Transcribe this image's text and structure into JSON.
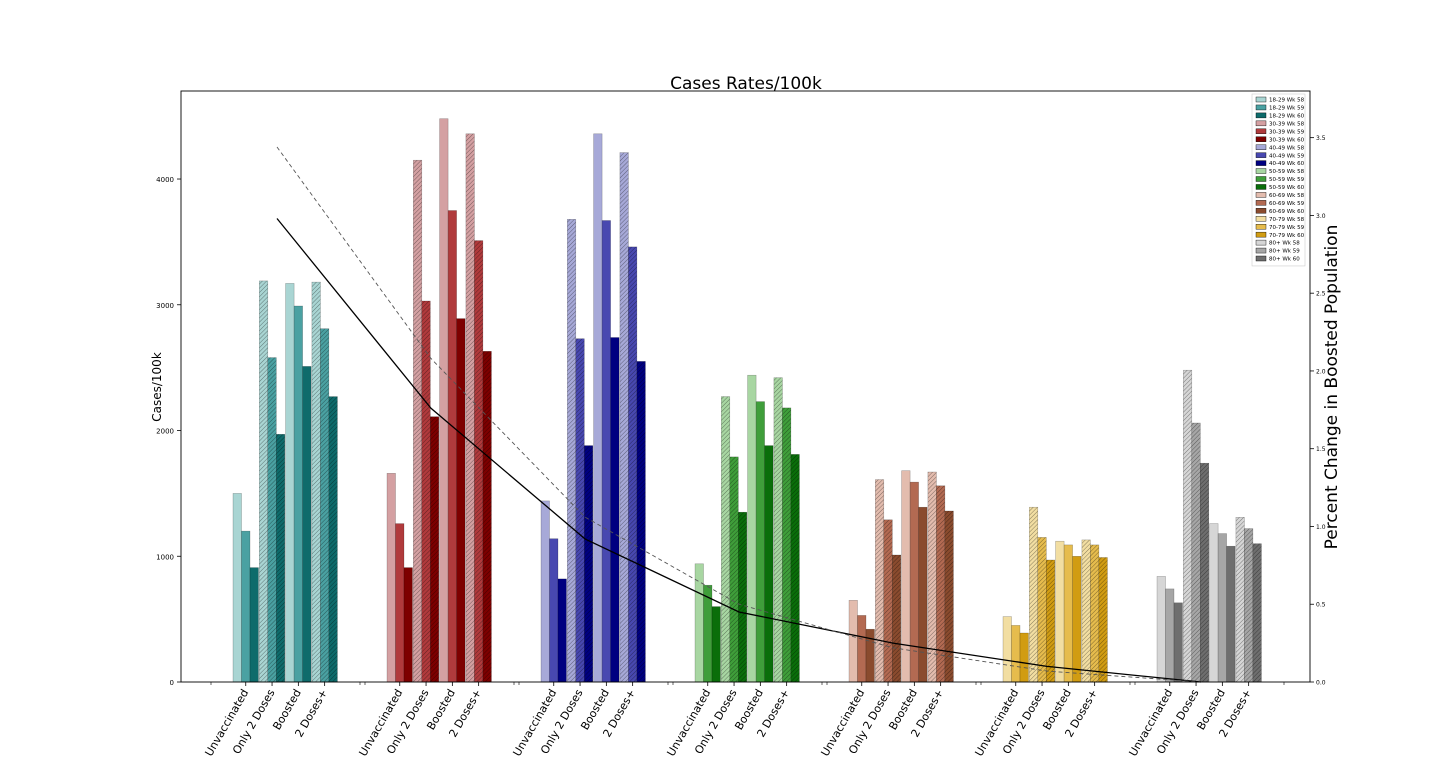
{
  "chart_data": {
    "type": "bar",
    "title": "Cases Rates/100k",
    "xlabel": "",
    "ylabel": "Cases/100k",
    "ylabel_right": "Percent Change in Boosted Population",
    "ylim": [
      0,
      4700
    ],
    "ylim_right": [
      0,
      3.8
    ],
    "yticks": [
      0,
      1000,
      2000,
      3000,
      4000
    ],
    "yticks_right": [
      0.0,
      0.5,
      1.0,
      1.5,
      2.0,
      2.5,
      3.0,
      3.5
    ],
    "yticks_right_labels": [
      "0.0",
      "0.5",
      "1.0",
      "1.5",
      "2.0",
      "2.5",
      "3.0",
      "3.5"
    ],
    "legend_position": "top-right",
    "status_labels": [
      "Unvaccinated",
      "Only 2 Doses",
      "Boosted",
      "2 Doses+"
    ],
    "groups": [
      {
        "age": "18-29",
        "colors": [
          "#a9d5d3",
          "#4aa1a2",
          "#0e6b6b"
        ],
        "values": [
          [
            1500,
            1200,
            910
          ],
          [
            3190,
            2580,
            1970
          ],
          [
            3170,
            2990,
            2510
          ],
          [
            3180,
            2810,
            2270
          ]
        ]
      },
      {
        "age": "30-39",
        "colors": [
          "#d4a0a2",
          "#b03a3c",
          "#7d0000"
        ],
        "values": [
          [
            1660,
            1260,
            910
          ],
          [
            4150,
            3030,
            2110
          ],
          [
            4480,
            3750,
            2890
          ],
          [
            4360,
            3510,
            2630
          ]
        ]
      },
      {
        "age": "40-49",
        "colors": [
          "#a7a9d8",
          "#4848b0",
          "#000080"
        ],
        "values": [
          [
            1440,
            1140,
            820
          ],
          [
            3680,
            2730,
            1880
          ],
          [
            4360,
            3670,
            2740
          ],
          [
            4210,
            3460,
            2550
          ]
        ]
      },
      {
        "age": "50-59",
        "colors": [
          "#a8d6a2",
          "#3f9e3a",
          "#0a6e0a"
        ],
        "values": [
          [
            940,
            770,
            600
          ],
          [
            2270,
            1790,
            1350
          ],
          [
            2440,
            2230,
            1880
          ],
          [
            2420,
            2180,
            1810
          ]
        ]
      },
      {
        "age": "60-69",
        "colors": [
          "#e3bcae",
          "#b36a52",
          "#8a4b2e"
        ],
        "values": [
          [
            650,
            530,
            420
          ],
          [
            1610,
            1290,
            1010
          ],
          [
            1680,
            1590,
            1390
          ],
          [
            1670,
            1560,
            1360
          ]
        ]
      },
      {
        "age": "70-79",
        "colors": [
          "#f2dea2",
          "#e6bc4d",
          "#d19c12"
        ],
        "values": [
          [
            520,
            450,
            390
          ],
          [
            1390,
            1150,
            970
          ],
          [
            1120,
            1090,
            1000
          ],
          [
            1130,
            1090,
            990
          ]
        ]
      },
      {
        "age": "80+",
        "colors": [
          "#d6d6d6",
          "#a6a6a6",
          "#6e6e6e"
        ],
        "values": [
          [
            840,
            740,
            630
          ],
          [
            2480,
            2060,
            1740
          ],
          [
            1260,
            1180,
            1080
          ],
          [
            1310,
            1220,
            1100
          ]
        ]
      }
    ],
    "legend": [
      "18-29 Wk 58",
      "18-29 Wk 59",
      "18-29 Wk 60",
      "30-39 Wk 58",
      "30-39 Wk 59",
      "30-39 Wk 60",
      "40-49 Wk 58",
      "40-49 Wk 59",
      "40-49 Wk 60",
      "50-59 Wk 58",
      "50-59 Wk 59",
      "50-59 Wk 60",
      "60-69 Wk 58",
      "60-69 Wk 59",
      "60-69 Wk 60",
      "70-79 Wk 58",
      "70-79 Wk 59",
      "70-79 Wk 60",
      "80+ Wk 58",
      "80+ Wk 59",
      "80+ Wk 60"
    ],
    "lines": [
      {
        "style": "solid",
        "color": "#000000",
        "axis": "right",
        "values": [
          2.98,
          1.76,
          0.92,
          0.45,
          0.25,
          0.1,
          -0.06
        ]
      },
      {
        "style": "dashed",
        "color": "#555555",
        "axis": "right",
        "values": [
          3.44,
          2.08,
          1.06,
          0.5,
          0.22,
          0.07,
          -0.06
        ]
      }
    ]
  }
}
